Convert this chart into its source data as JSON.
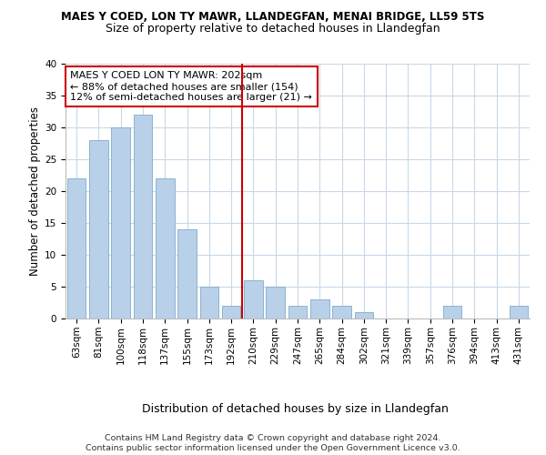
{
  "title1": "MAES Y COED, LON TY MAWR, LLANDEGFAN, MENAI BRIDGE, LL59 5TS",
  "title2": "Size of property relative to detached houses in Llandegfan",
  "xlabel": "Distribution of detached houses by size in Llandegfan",
  "ylabel": "Number of detached properties",
  "categories": [
    "63sqm",
    "81sqm",
    "100sqm",
    "118sqm",
    "137sqm",
    "155sqm",
    "173sqm",
    "192sqm",
    "210sqm",
    "229sqm",
    "247sqm",
    "265sqm",
    "284sqm",
    "302sqm",
    "321sqm",
    "339sqm",
    "357sqm",
    "376sqm",
    "394sqm",
    "413sqm",
    "431sqm"
  ],
  "values": [
    22,
    28,
    30,
    32,
    22,
    14,
    5,
    2,
    6,
    5,
    2,
    3,
    2,
    1,
    0,
    0,
    0,
    2,
    0,
    0,
    2
  ],
  "bar_color": "#b8d0e8",
  "bar_edge_color": "#8ab4d0",
  "vline_color": "#cc0000",
  "annotation_text": "MAES Y COED LON TY MAWR: 202sqm\n← 88% of detached houses are smaller (154)\n12% of semi-detached houses are larger (21) →",
  "annotation_box_color": "#cc0000",
  "ylim": [
    0,
    40
  ],
  "yticks": [
    0,
    5,
    10,
    15,
    20,
    25,
    30,
    35,
    40
  ],
  "footer": "Contains HM Land Registry data © Crown copyright and database right 2024.\nContains public sector information licensed under the Open Government Licence v3.0.",
  "bg_color": "#ffffff",
  "grid_color": "#c8d8e8",
  "title1_fontsize": 8.5,
  "title2_fontsize": 9.0,
  "xlabel_fontsize": 9.0,
  "ylabel_fontsize": 8.5,
  "tick_fontsize": 7.5,
  "annotation_fontsize": 8.0,
  "footer_fontsize": 6.8
}
